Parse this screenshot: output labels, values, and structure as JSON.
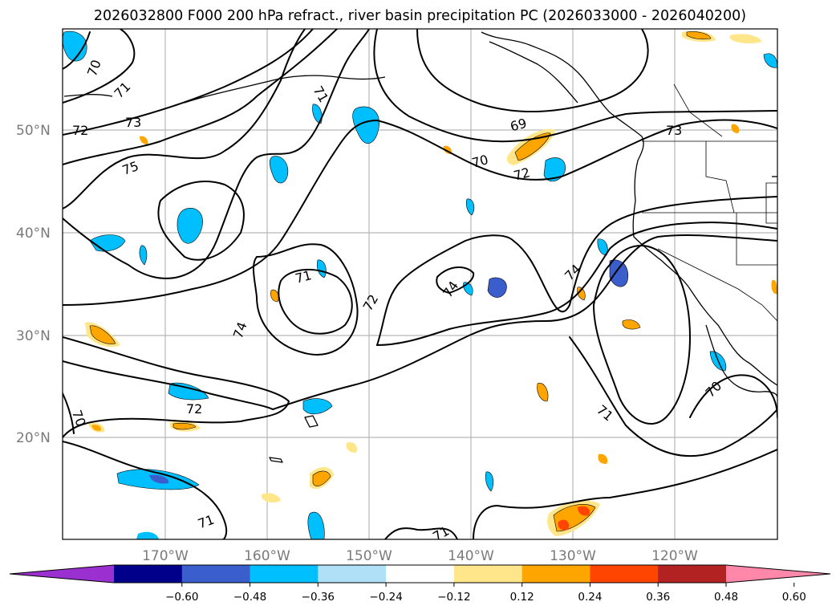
{
  "title": "2026032800 F000 200 hPa refract., river basin precipitation PC (2026033000 - 2026040200)",
  "map": {
    "lat_labels": [
      "50°N",
      "40°N",
      "30°N",
      "20°N"
    ],
    "lon_labels": [
      "170°W",
      "160°W",
      "150°W",
      "140°W",
      "130°W",
      "120°W"
    ],
    "gridlines": true,
    "coastline": true,
    "contour_labels": [
      "70",
      "71",
      "72",
      "73",
      "75",
      "69",
      "70",
      "72",
      "73",
      "71",
      "72",
      "74",
      "74",
      "74",
      "71",
      "70",
      "71",
      "72",
      "70",
      "71",
      "71"
    ]
  },
  "colorbar": {
    "orientation": "horizontal",
    "extend": "both",
    "tick_labels": [
      "−0.60",
      "−0.48",
      "−0.36",
      "−0.24",
      "−0.12",
      "0.12",
      "0.24",
      "0.36",
      "0.48",
      "0.60"
    ],
    "bins": [
      {
        "color": "#9b30d0"
      },
      {
        "color": "#00008b"
      },
      {
        "color": "#3a5fcd"
      },
      {
        "color": "#00bfff"
      },
      {
        "color": "#b0e0f8"
      },
      {
        "color": "#ffffff"
      },
      {
        "color": "#ffe68a"
      },
      {
        "color": "#ffa500"
      },
      {
        "color": "#ff4500"
      },
      {
        "color": "#b22222"
      },
      {
        "color": "#ff88aa"
      }
    ]
  }
}
